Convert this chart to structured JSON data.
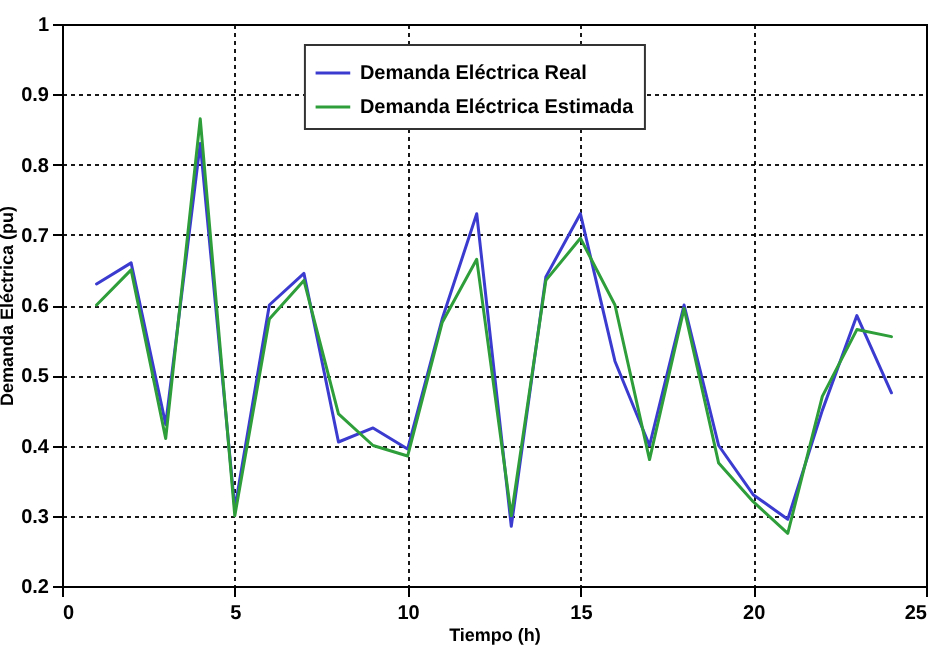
{
  "chart_data": {
    "type": "line",
    "xlabel": "Tiempo (h)",
    "ylabel": "Demanda Eléctrica (pu)",
    "x": [
      1,
      2,
      3,
      4,
      5,
      6,
      7,
      8,
      9,
      10,
      11,
      12,
      13,
      14,
      15,
      16,
      17,
      18,
      19,
      20,
      21,
      22,
      23,
      24
    ],
    "series": [
      {
        "name": "Demanda Eléctrica Real",
        "color": "#3b3bd0",
        "values": [
          0.63,
          0.66,
          0.43,
          0.83,
          0.31,
          0.6,
          0.645,
          0.405,
          0.425,
          0.395,
          0.58,
          0.73,
          0.285,
          0.64,
          0.73,
          0.52,
          0.4,
          0.6,
          0.4,
          0.33,
          0.295,
          0.45,
          0.585,
          0.475
        ]
      },
      {
        "name": "Demanda Eléctrica Estimada",
        "color": "#2e9e3a",
        "values": [
          0.6,
          0.65,
          0.41,
          0.865,
          0.3,
          0.58,
          0.635,
          0.445,
          0.4,
          0.385,
          0.575,
          0.665,
          0.3,
          0.635,
          0.695,
          0.6,
          0.38,
          0.595,
          0.375,
          0.32,
          0.275,
          0.47,
          0.565,
          0.555
        ]
      }
    ],
    "xlim": [
      0,
      25
    ],
    "xticks": [
      0,
      5,
      10,
      15,
      20,
      25
    ],
    "ylim": [
      0.2,
      1
    ],
    "yticks": [
      0.2,
      0.3,
      0.4,
      0.5,
      0.6,
      0.7,
      0.8,
      0.9,
      1
    ],
    "grid": true,
    "legend": "top",
    "marker": "none",
    "line_style": "solid"
  }
}
